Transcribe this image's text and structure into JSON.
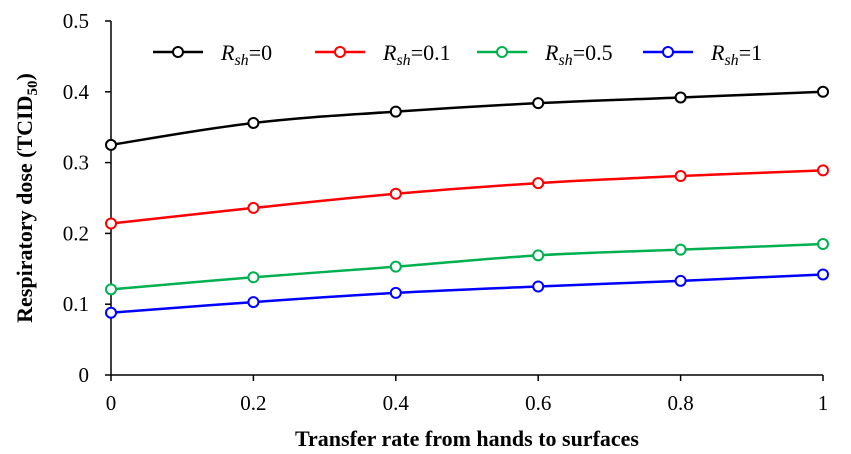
{
  "chart_data": {
    "type": "line",
    "xlabel": "Transfer rate from hands to surfaces",
    "ylabel": "Respiratory dose (TCID",
    "ylabel_sub": "50",
    "ylabel_end": ")",
    "xlim": [
      0,
      1
    ],
    "ylim": [
      0,
      0.5
    ],
    "x_ticks": [
      "0",
      "0.2",
      "0.4",
      "0.6",
      "0.8",
      "1"
    ],
    "y_ticks": [
      "0",
      "0.1",
      "0.2",
      "0.3",
      "0.4",
      "0.5"
    ],
    "x": [
      0,
      0.2,
      0.4,
      0.6,
      0.8,
      1
    ],
    "legend_position": "top",
    "series": [
      {
        "name": "Rsh=0",
        "legend_var": "R",
        "legend_sub": "sh",
        "legend_val": "=0",
        "color": "#000000",
        "values": [
          0.325,
          0.356,
          0.372,
          0.384,
          0.392,
          0.4
        ]
      },
      {
        "name": "Rsh=0.1",
        "legend_var": "R",
        "legend_sub": "sh",
        "legend_val": "=0.1",
        "color": "#ff0000",
        "values": [
          0.214,
          0.236,
          0.256,
          0.271,
          0.281,
          0.289
        ]
      },
      {
        "name": "Rsh=0.5",
        "legend_var": "R",
        "legend_sub": "sh",
        "legend_val": "=0.5",
        "color": "#00b050",
        "values": [
          0.121,
          0.138,
          0.153,
          0.169,
          0.177,
          0.185
        ]
      },
      {
        "name": "Rsh=1",
        "legend_var": "R",
        "legend_sub": "sh",
        "legend_val": "=1",
        "color": "#0000ff",
        "values": [
          0.088,
          0.103,
          0.116,
          0.125,
          0.133,
          0.142
        ]
      }
    ]
  }
}
